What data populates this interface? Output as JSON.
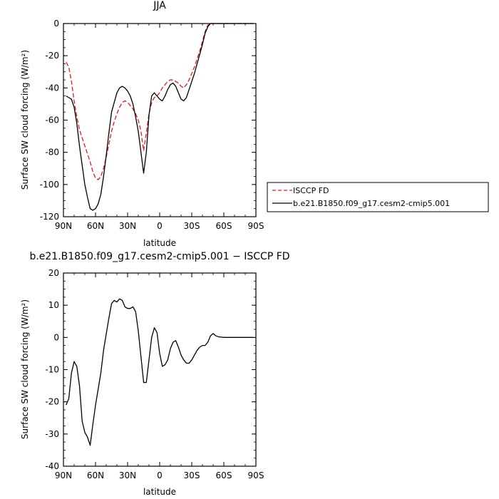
{
  "chart_data": [
    {
      "type": "line",
      "title": "JJA",
      "xlabel": "latitude",
      "ylabel": "Surface SW cloud forcing (W/m²)",
      "xlim": [
        90,
        -90
      ],
      "ylim": [
        -120,
        0
      ],
      "x_ticks": [
        90,
        60,
        30,
        0,
        -30,
        -60,
        -90
      ],
      "x_tick_labels": [
        "90N",
        "60N",
        "30N",
        "0",
        "30S",
        "60S",
        "90S"
      ],
      "y_ticks": [
        -120,
        -100,
        -80,
        -60,
        -40,
        -20,
        0
      ],
      "y_tick_labels": [
        "-120",
        "-100",
        "-80",
        "-60",
        "-40",
        "-20",
        "0"
      ],
      "legend_position": "right",
      "series": [
        {
          "name": "ISCCP FD",
          "color": "#e41a1c",
          "dashed": true,
          "x": [
            87.5,
            85,
            82.5,
            80,
            77.5,
            75,
            72.5,
            70,
            67.5,
            65,
            62.5,
            60,
            57.5,
            55,
            52.5,
            50,
            47.5,
            45,
            42.5,
            40,
            37.5,
            35,
            32.5,
            30,
            27.5,
            25,
            22.5,
            20,
            17.5,
            15,
            12.5,
            10,
            7.5,
            5,
            2.5,
            0,
            -2.5,
            -5,
            -7.5,
            -10,
            -12.5,
            -15,
            -17.5,
            -20,
            -22.5,
            -25,
            -27.5,
            -30,
            -32.5,
            -35,
            -37.5,
            -40,
            -42.5,
            -45,
            -47.5,
            -50,
            -52.5,
            -55,
            -57.5,
            -60,
            -62.5,
            -65,
            -67.5,
            -70,
            -72.5,
            -75,
            -77.5,
            -80,
            -82.5,
            -85,
            -87.5
          ],
          "y": [
            -24,
            -27,
            -36,
            -48,
            -58,
            -66,
            -71,
            -76,
            -81,
            -86,
            -92,
            -96,
            -97,
            -95,
            -90,
            -83,
            -75,
            -67,
            -61,
            -56,
            -52,
            -49,
            -48,
            -49,
            -51,
            -53,
            -56,
            -60,
            -67,
            -79,
            -68,
            -56,
            -49,
            -46,
            -45,
            -43,
            -40,
            -38,
            -36,
            -35,
            -35,
            -36,
            -37,
            -39,
            -40,
            -38,
            -35,
            -31,
            -27,
            -22,
            -17,
            -11,
            -5,
            -1,
            0,
            0,
            0,
            0,
            0,
            0,
            0,
            0,
            0,
            0,
            0,
            0,
            0,
            0,
            0,
            0,
            0
          ]
        },
        {
          "name": "b.e21.B1850.f09_g17.cesm2-cmip5.001",
          "color": "#000000",
          "dashed": false,
          "x": [
            87.5,
            85,
            82.5,
            80,
            77.5,
            75,
            72.5,
            70,
            67.5,
            65,
            62.5,
            60,
            57.5,
            55,
            52.5,
            50,
            47.5,
            45,
            42.5,
            40,
            37.5,
            35,
            32.5,
            30,
            27.5,
            25,
            22.5,
            20,
            17.5,
            15,
            12.5,
            10,
            7.5,
            5,
            2.5,
            0,
            -2.5,
            -5,
            -7.5,
            -10,
            -12.5,
            -15,
            -17.5,
            -20,
            -22.5,
            -25,
            -27.5,
            -30,
            -32.5,
            -35,
            -37.5,
            -40,
            -42.5,
            -45,
            -47.5,
            -50,
            -52.5,
            -55,
            -57.5,
            -60,
            -62.5,
            -65,
            -67.5,
            -70,
            -72.5,
            -75,
            -77.5,
            -80,
            -82.5,
            -85,
            -87.5
          ],
          "y": [
            -45,
            -46,
            -47,
            -52,
            -62,
            -76,
            -88,
            -100,
            -108,
            -115,
            -116,
            -115,
            -112,
            -106,
            -95,
            -82,
            -68,
            -55,
            -49,
            -43,
            -40,
            -39,
            -40,
            -42,
            -45,
            -50,
            -58,
            -67,
            -80,
            -93,
            -80,
            -57,
            -45,
            -43,
            -45,
            -47,
            -48,
            -45,
            -41,
            -38,
            -37,
            -39,
            -43,
            -47,
            -48,
            -46,
            -41,
            -36,
            -31,
            -25,
            -19,
            -13,
            -6,
            -2,
            0,
            0,
            0,
            0,
            0,
            0,
            0,
            0,
            0,
            0,
            0,
            0,
            0,
            0,
            0,
            0,
            0
          ]
        }
      ]
    },
    {
      "type": "line",
      "title": "b.e21.B1850.f09_g17.cesm2-cmip5.001 − ISCCP FD",
      "xlabel": "latitude",
      "ylabel": "Surface SW cloud forcing (W/m²)",
      "xlim": [
        90,
        -90
      ],
      "ylim": [
        -40,
        20
      ],
      "x_ticks": [
        90,
        60,
        30,
        0,
        -30,
        -60,
        -90
      ],
      "x_tick_labels": [
        "90N",
        "60N",
        "30N",
        "0",
        "30S",
        "60S",
        "90S"
      ],
      "y_ticks": [
        -40,
        -30,
        -20,
        -10,
        0,
        10,
        20
      ],
      "y_tick_labels": [
        "-40",
        "-30",
        "-20",
        "-10",
        "0",
        "10",
        "20"
      ],
      "series": [
        {
          "color": "#000000",
          "dashed": false,
          "x": [
            87.5,
            85,
            82.5,
            80,
            77.5,
            75,
            72.5,
            70,
            67.5,
            65,
            62.5,
            60,
            57.5,
            55,
            52.5,
            50,
            47.5,
            45,
            42.5,
            40,
            37.5,
            35,
            32.5,
            30,
            27.5,
            25,
            22.5,
            20,
            17.5,
            15,
            12.5,
            10,
            7.5,
            5,
            2.5,
            0,
            -2.5,
            -5,
            -7.5,
            -10,
            -12.5,
            -15,
            -17.5,
            -20,
            -22.5,
            -25,
            -27.5,
            -30,
            -32.5,
            -35,
            -37.5,
            -40,
            -42.5,
            -45,
            -47.5,
            -50,
            -52.5,
            -55,
            -57.5,
            -60,
            -62.5,
            -65,
            -67.5,
            -70,
            -72.5,
            -75,
            -77.5,
            -80,
            -82.5,
            -85,
            -87.5
          ],
          "y": [
            -21,
            -19,
            -11,
            -7.5,
            -9,
            -15,
            -26,
            -29.5,
            -31,
            -33.5,
            -27,
            -21,
            -16,
            -11,
            -4,
            1,
            6,
            10.5,
            11.5,
            11,
            12,
            11.5,
            9.5,
            9,
            9,
            9.5,
            8,
            2,
            -6,
            -14,
            -14,
            -7,
            0,
            3,
            1.5,
            -5,
            -9,
            -8.5,
            -7,
            -3.5,
            -1.5,
            -1,
            -3,
            -5.5,
            -7,
            -8,
            -8,
            -7,
            -5.5,
            -4,
            -3,
            -2.5,
            -2.5,
            -1.5,
            0.5,
            1.2,
            0.5,
            0.2,
            0.1,
            0,
            0,
            0,
            0,
            0,
            0,
            0,
            0,
            0,
            0,
            0,
            0
          ]
        }
      ]
    }
  ]
}
